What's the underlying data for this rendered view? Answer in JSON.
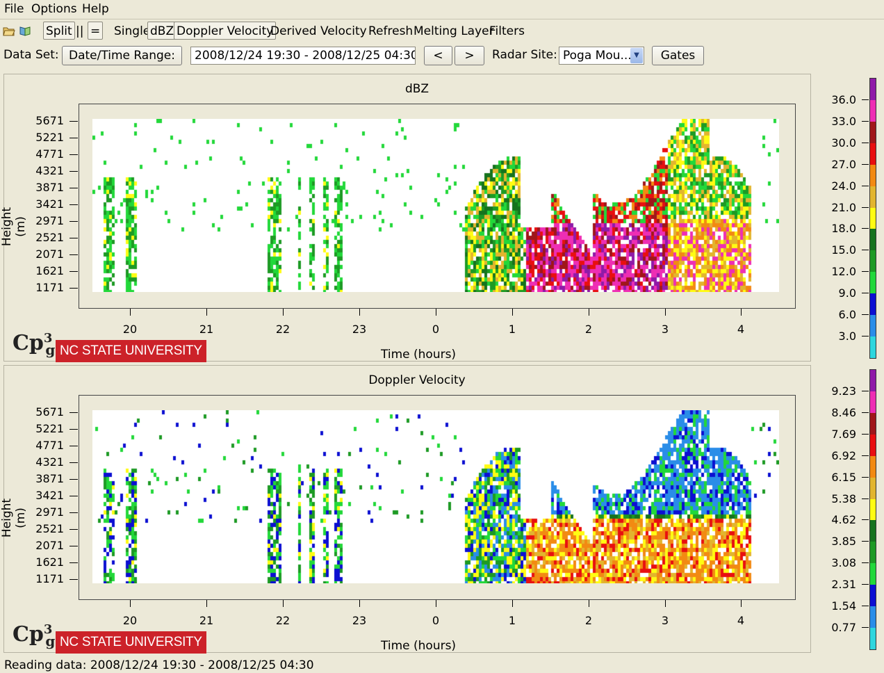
{
  "menu": {
    "file": "File",
    "options": "Options",
    "help": "Help"
  },
  "toolbar": {
    "icons": [
      "open-folder-icon",
      "open-book-icon"
    ],
    "split": "Split",
    "vertical_split": "||",
    "horizontal_split": "=",
    "single": "Single",
    "dbz": "dBZ",
    "doppler": "Doppler Velocity",
    "derived": "Derived Velocity",
    "refresh": "Refresh",
    "melting": "Melting Layer",
    "filters": "Filters"
  },
  "dataset": {
    "label": "Data Set:",
    "range_button": "Date/Time Range:",
    "range_value": "2008/12/24 19:30 - 2008/12/25 04:30",
    "prev": "<",
    "next": ">",
    "radar_label": "Radar Site:",
    "radar_value": "Poga Mou...",
    "gates": "Gates"
  },
  "chart_data": [
    {
      "type": "heatmap",
      "title": "dBZ",
      "xlabel": "Time (hours)",
      "ylabel": "Height (m)",
      "xticks": [
        "20",
        "21",
        "22",
        "23",
        "0",
        "1",
        "2",
        "3",
        "4"
      ],
      "yticks": [
        "5671",
        "5221",
        "4771",
        "4321",
        "3871",
        "3421",
        "2971",
        "2521",
        "2071",
        "1621",
        "1171"
      ],
      "colorbar": {
        "labels": [
          "36.0",
          "33.0",
          "30.0",
          "27.0",
          "24.0",
          "21.0",
          "18.0",
          "15.0",
          "12.0",
          "9.0",
          "6.0",
          "3.0"
        ],
        "colors": [
          "#8f1aa8",
          "#ee2eb4",
          "#a0161a",
          "#e80f10",
          "#f28a12",
          "#e2b52e",
          "#fffc13",
          "#16731e",
          "#1d9a24",
          "#22d83a",
          "#0c0fd1",
          "#2a8de8",
          "#2ed6de"
        ]
      }
    },
    {
      "type": "heatmap",
      "title": "Doppler Velocity",
      "xlabel": "Time (hours)",
      "ylabel": "Height (m)",
      "xticks": [
        "20",
        "21",
        "22",
        "23",
        "0",
        "1",
        "2",
        "3",
        "4"
      ],
      "yticks": [
        "5671",
        "5221",
        "4771",
        "4321",
        "3871",
        "3421",
        "2971",
        "2521",
        "2071",
        "1621",
        "1171"
      ],
      "colorbar": {
        "labels": [
          "9.23",
          "8.46",
          "7.69",
          "6.92",
          "6.15",
          "5.38",
          "4.62",
          "3.85",
          "3.08",
          "2.31",
          "1.54",
          "0.77"
        ],
        "colors": [
          "#8f1aa8",
          "#ee2eb4",
          "#a0161a",
          "#e80f10",
          "#f28a12",
          "#e2b52e",
          "#fffc13",
          "#16731e",
          "#1d9a24",
          "#22d83a",
          "#0c0fd1",
          "#2a8de8",
          "#2ed6de"
        ]
      }
    }
  ],
  "logos": {
    "cp": "Cp",
    "cp_sup": "3",
    "cp_sub": "g",
    "ncsu": "NC STATE UNIVERSITY"
  },
  "status": "Reading data: 2008/12/24 19:30 - 2008/12/25 04:30"
}
